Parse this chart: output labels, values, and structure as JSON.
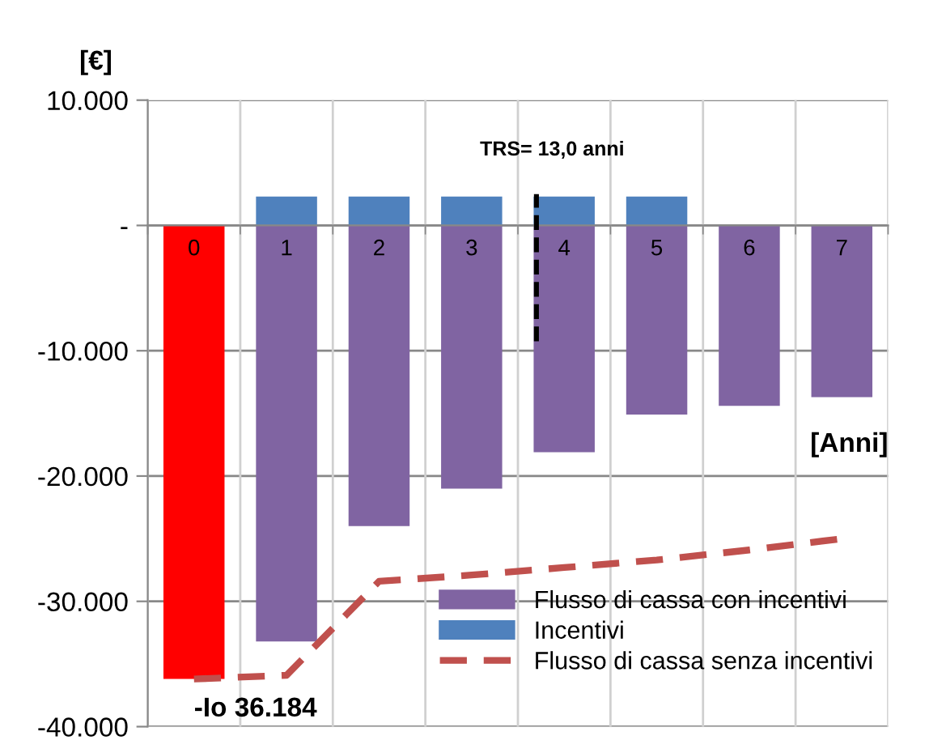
{
  "chart_data": {
    "type": "bar",
    "xlabel": "[Anni]",
    "ylabel": "[€]",
    "categories": [
      "0",
      "1",
      "2",
      "3",
      "4",
      "5",
      "6",
      "7"
    ],
    "series": [
      {
        "name": "Flusso di cassa con incentivi",
        "colors": [
          "#ff0000",
          "#8064a2",
          "#8064a2",
          "#8064a2",
          "#8064a2",
          "#8064a2",
          "#8064a2",
          "#8064a2"
        ],
        "color": "#8064a2",
        "values": [
          -36184,
          -33200,
          -24000,
          -21000,
          -18100,
          -15100,
          -14400,
          -13700
        ]
      },
      {
        "name": "Incentivi",
        "color": "#4f81bd",
        "values": [
          null,
          2300,
          2300,
          2300,
          2300,
          2300,
          null,
          null
        ]
      },
      {
        "name": "Flusso di cassa senza incentivi",
        "type": "line",
        "color": "#c0504d",
        "line_style": "dashed",
        "values": [
          -36200,
          -35900,
          -28400,
          -27900,
          -27300,
          -26700,
          -25900,
          -25000
        ]
      }
    ],
    "ylim": [
      -40000,
      10000
    ],
    "yticks": [
      {
        "value": 10000,
        "label": "10.000"
      },
      {
        "value": 0,
        "label": "-"
      },
      {
        "value": -10000,
        "label": "-10.000"
      },
      {
        "value": -20000,
        "label": "-20.000"
      },
      {
        "value": -30000,
        "label": "-30.000"
      },
      {
        "value": -40000,
        "label": "-40.000"
      }
    ],
    "grid": true,
    "legend": "bottom right",
    "stacked": true,
    "annotations": [
      "TRS= 13,0 anni",
      {
        "text": "-Io 36.184",
        "x": "0",
        "y": -36184
      }
    ]
  }
}
